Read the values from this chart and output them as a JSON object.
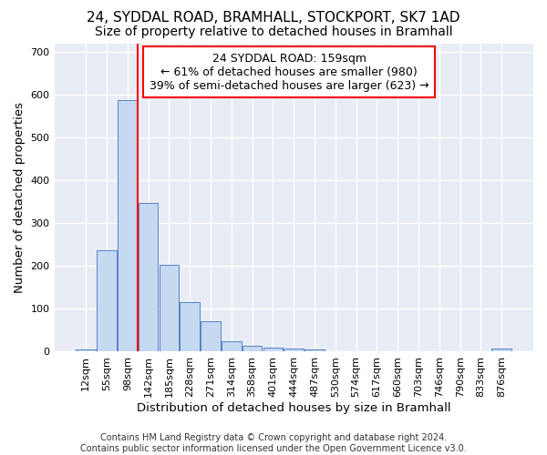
{
  "title_line1": "24, SYDDAL ROAD, BRAMHALL, STOCKPORT, SK7 1AD",
  "title_line2": "Size of property relative to detached houses in Bramhall",
  "xlabel": "Distribution of detached houses by size in Bramhall",
  "ylabel": "Number of detached properties",
  "footnote": "Contains HM Land Registry data © Crown copyright and database right 2024.\nContains public sector information licensed under the Open Government Licence v3.0.",
  "bar_labels": [
    "12sqm",
    "55sqm",
    "98sqm",
    "142sqm",
    "185sqm",
    "228sqm",
    "271sqm",
    "314sqm",
    "358sqm",
    "401sqm",
    "444sqm",
    "487sqm",
    "530sqm",
    "574sqm",
    "617sqm",
    "660sqm",
    "703sqm",
    "746sqm",
    "790sqm",
    "833sqm",
    "876sqm"
  ],
  "bar_values": [
    5,
    237,
    588,
    347,
    202,
    115,
    72,
    25,
    13,
    10,
    8,
    5,
    0,
    0,
    0,
    0,
    0,
    0,
    0,
    0,
    8
  ],
  "bar_color": "#c5d9f1",
  "bar_edge_color": "#4472c4",
  "vline_x_index": 2.5,
  "vline_color": "red",
  "annotation_text": "24 SYDDAL ROAD: 159sqm\n← 61% of detached houses are smaller (980)\n39% of semi-detached houses are larger (623) →",
  "annotation_box_color": "white",
  "annotation_box_edge_color": "red",
  "ylim": [
    0,
    720
  ],
  "yticks": [
    0,
    100,
    200,
    300,
    400,
    500,
    600,
    700
  ],
  "background_color": "#e8edf5",
  "grid_color": "white",
  "title_fontsize": 11,
  "subtitle_fontsize": 10,
  "axis_label_fontsize": 9.5,
  "tick_fontsize": 8,
  "annotation_fontsize": 9,
  "footnote_fontsize": 7
}
